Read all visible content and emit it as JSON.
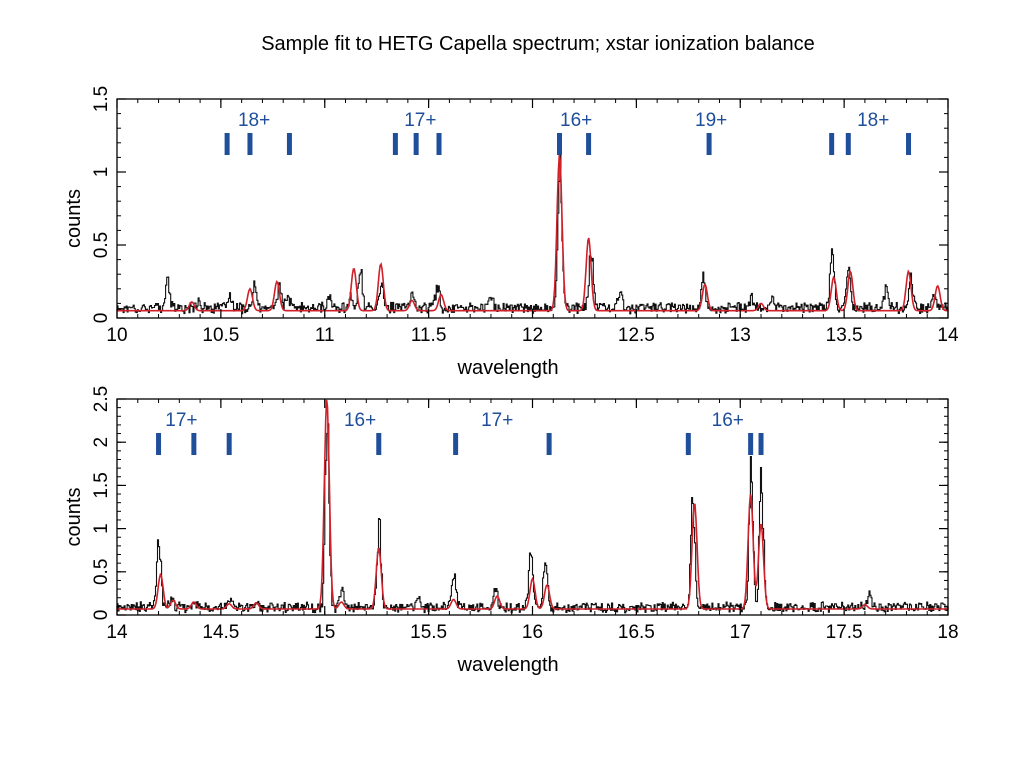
{
  "title": "Sample fit to HETG Capella spectrum; xstar ionization balance",
  "colors": {
    "data": "#111111",
    "model": "#d0202a",
    "marker": "#1f4e9a"
  },
  "chart_data": [
    {
      "type": "line",
      "xlabel": "wavelength",
      "ylabel": "counts",
      "xlim": [
        10,
        14
      ],
      "ylim": [
        0,
        1.5
      ],
      "x_ticks": [
        "10",
        "10.5",
        "11",
        "11.5",
        "12",
        "12.5",
        "13",
        "13.5",
        "14"
      ],
      "y_ticks": [
        "0",
        "0.5",
        "1",
        "1.5"
      ],
      "baseline": {
        "data": 0.07,
        "model": 0.05
      },
      "series": [
        {
          "role": "data",
          "style": "black histogram",
          "peaks": [
            [
              10.24,
              0.26
            ],
            [
              10.39,
              0.12
            ],
            [
              10.54,
              0.14
            ],
            [
              10.66,
              0.2
            ],
            [
              10.78,
              0.22
            ],
            [
              10.82,
              0.14
            ],
            [
              11.02,
              0.14
            ],
            [
              11.12,
              0.15
            ],
            [
              11.17,
              0.32
            ],
            [
              11.27,
              0.25
            ],
            [
              11.42,
              0.16
            ],
            [
              11.54,
              0.21
            ],
            [
              11.8,
              0.15
            ],
            [
              12.13,
              1.08
            ],
            [
              12.28,
              0.5
            ],
            [
              12.42,
              0.17
            ],
            [
              12.82,
              0.27
            ],
            [
              13.05,
              0.14
            ],
            [
              13.15,
              0.14
            ],
            [
              13.44,
              0.44
            ],
            [
              13.52,
              0.36
            ],
            [
              13.7,
              0.2
            ],
            [
              13.82,
              0.26
            ],
            [
              13.93,
              0.16
            ]
          ]
        },
        {
          "role": "model",
          "style": "red line",
          "peaks": [
            [
              10.36,
              0.11
            ],
            [
              10.64,
              0.2
            ],
            [
              10.77,
              0.25
            ],
            [
              11.14,
              0.34
            ],
            [
              11.27,
              0.37
            ],
            [
              11.42,
              0.12
            ],
            [
              11.56,
              0.16
            ],
            [
              12.13,
              1.12
            ],
            [
              12.27,
              0.55
            ],
            [
              12.83,
              0.23
            ],
            [
              13.1,
              0.1
            ],
            [
              13.45,
              0.28
            ],
            [
              13.53,
              0.32
            ],
            [
              13.81,
              0.32
            ],
            [
              13.95,
              0.22
            ]
          ]
        }
      ],
      "line_markers": [
        10.53,
        10.64,
        10.83,
        11.34,
        11.44,
        11.55,
        12.13,
        12.27,
        12.85,
        13.44,
        13.52,
        13.81
      ],
      "ion_labels": [
        {
          "text": "18+",
          "x": 10.66
        },
        {
          "text": "17+",
          "x": 11.46
        },
        {
          "text": "16+",
          "x": 12.21
        },
        {
          "text": "19+",
          "x": 12.86
        },
        {
          "text": "18+",
          "x": 13.64
        }
      ]
    },
    {
      "type": "line",
      "xlabel": "wavelength",
      "ylabel": "counts",
      "xlim": [
        14,
        18
      ],
      "ylim": [
        0,
        2.5
      ],
      "x_ticks": [
        "14",
        "14.5",
        "15",
        "15.5",
        "16",
        "16.5",
        "17",
        "17.5",
        "18"
      ],
      "y_ticks": [
        "0",
        "0.5",
        "1",
        "1.5",
        "2",
        "2.5"
      ],
      "baseline": {
        "data": 0.09,
        "model": 0.07
      },
      "series": [
        {
          "role": "data",
          "style": "black histogram",
          "peaks": [
            [
              14.2,
              0.85
            ],
            [
              14.26,
              0.2
            ],
            [
              14.37,
              0.18
            ],
            [
              14.54,
              0.16
            ],
            [
              14.67,
              0.14
            ],
            [
              15.01,
              2.45
            ],
            [
              15.08,
              0.3
            ],
            [
              15.26,
              1.0
            ],
            [
              15.45,
              0.22
            ],
            [
              15.62,
              0.45
            ],
            [
              15.82,
              0.3
            ],
            [
              15.99,
              0.75
            ],
            [
              16.06,
              0.7
            ],
            [
              16.77,
              1.3
            ],
            [
              17.05,
              1.75
            ],
            [
              17.1,
              1.65
            ],
            [
              17.62,
              0.22
            ]
          ]
        },
        {
          "role": "model",
          "style": "red line",
          "peaks": [
            [
              14.21,
              0.47
            ],
            [
              14.27,
              0.17
            ],
            [
              14.37,
              0.15
            ],
            [
              14.54,
              0.13
            ],
            [
              14.67,
              0.14
            ],
            [
              15.01,
              2.5
            ],
            [
              15.08,
              0.15
            ],
            [
              15.26,
              0.78
            ],
            [
              15.62,
              0.18
            ],
            [
              15.83,
              0.22
            ],
            [
              16.0,
              0.42
            ],
            [
              16.07,
              0.35
            ],
            [
              16.78,
              1.3
            ],
            [
              17.05,
              1.4
            ],
            [
              17.1,
              1.06
            ],
            [
              17.6,
              0.12
            ]
          ]
        }
      ],
      "line_markers": [
        14.2,
        14.37,
        14.54,
        15.26,
        15.63,
        16.08,
        16.75,
        17.05,
        17.1
      ],
      "ion_labels": [
        {
          "text": "17+",
          "x": 14.31
        },
        {
          "text": "16+",
          "x": 15.17
        },
        {
          "text": "17+",
          "x": 15.83
        },
        {
          "text": "16+",
          "x": 16.94
        }
      ]
    }
  ]
}
